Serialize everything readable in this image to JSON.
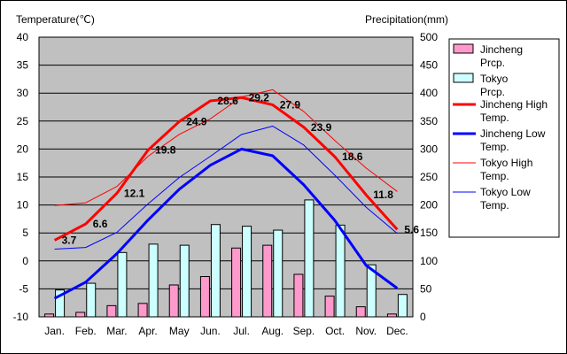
{
  "chart_data": {
    "type": "bar+line",
    "categories": [
      "Jan.",
      "Feb.",
      "Mar.",
      "Apr.",
      "May",
      "Jun.",
      "Jul.",
      "Aug.",
      "Sep.",
      "Oct.",
      "Nov.",
      "Dec."
    ],
    "left_axis": {
      "label": "Temperature(℃)",
      "ylim": [
        -10,
        40
      ],
      "ticks": [
        -10,
        -5,
        0,
        5,
        10,
        15,
        20,
        25,
        30,
        35,
        40
      ]
    },
    "right_axis": {
      "label": "Precipitation(mm)",
      "ylim": [
        0,
        500
      ],
      "ticks": [
        0,
        50,
        100,
        150,
        200,
        250,
        300,
        350,
        400,
        450,
        500
      ]
    },
    "bar_series": [
      {
        "name": "Jincheng Prcp.",
        "color": "#ff99cc",
        "values": [
          5,
          8,
          20,
          24,
          57,
          72,
          123,
          128,
          76,
          37,
          18,
          5
        ]
      },
      {
        "name": "Tokyo Prcp.",
        "color": "#ccffff",
        "values": [
          48,
          60,
          115,
          130,
          128,
          165,
          162,
          155,
          209,
          164,
          93,
          40
        ]
      }
    ],
    "line_series": [
      {
        "name": "Jincheng High Temp.",
        "color": "#ff0000",
        "width": "thick",
        "values": [
          3.7,
          6.6,
          12.1,
          19.8,
          24.9,
          28.6,
          29.2,
          27.9,
          23.9,
          18.6,
          11.8,
          5.6
        ],
        "labels": [
          "3.7",
          "6.6",
          "12.1",
          "19.8",
          "24.9",
          "28.6",
          "29.2",
          "27.9",
          "23.9",
          "18.6",
          "11.8",
          "5.6"
        ]
      },
      {
        "name": "Jincheng Low Temp.",
        "color": "#0000ff",
        "width": "thick",
        "values": [
          -6.7,
          -3.8,
          1.3,
          7.3,
          12.8,
          17.1,
          20.0,
          18.8,
          13.6,
          7.2,
          -0.8,
          -4.9
        ]
      },
      {
        "name": "Tokyo High Temp.",
        "color": "#ff0000",
        "width": "thin",
        "values": [
          9.9,
          10.4,
          13.3,
          18.7,
          22.6,
          25.4,
          29.3,
          30.6,
          26.7,
          21.5,
          16.6,
          12.4
        ]
      },
      {
        "name": "Tokyo Low Temp.",
        "color": "#0000ff",
        "width": "thin",
        "values": [
          2.1,
          2.4,
          5.1,
          10.2,
          14.9,
          18.7,
          22.6,
          24.1,
          20.7,
          15.3,
          9.6,
          4.9
        ]
      }
    ],
    "plot_background": "#c0c0c0",
    "grid": true,
    "legend_position": "right"
  }
}
